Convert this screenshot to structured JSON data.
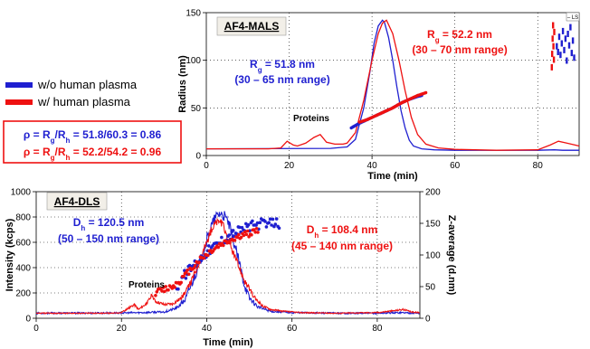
{
  "legend": {
    "items": [
      {
        "label": "w/o human plasma",
        "color": "#1f1fd0"
      },
      {
        "label": "w/ human plasma",
        "color": "#ee1111"
      }
    ]
  },
  "rho_box": {
    "line1": {
      "prefix": "ρ = R",
      "sub1": "g",
      "mid": "/R",
      "sub2": "h",
      "suffix": " = 51.8/60.3 = 0.86"
    },
    "line2": {
      "prefix": "ρ = R",
      "sub1": "g",
      "mid": "/R",
      "sub2": "h",
      "suffix": " = 52.2/54.2 = 0.96"
    }
  },
  "colors": {
    "blue": "#1f1fd0",
    "red": "#ee1111",
    "panel_bg": "#f2efe8"
  },
  "chart_data": [
    {
      "type": "line",
      "title": "AF4-MALS",
      "xlabel": "Time (min)",
      "ylabel": "Radius (nm)",
      "xlim": [
        0,
        90
      ],
      "ylim": [
        0,
        150
      ],
      "xticks": [
        0,
        20,
        40,
        60,
        80
      ],
      "yticks": [
        0,
        50,
        100,
        150
      ],
      "corner_tag": "– LS",
      "annotations": {
        "blue_rg": {
          "prefix": "R",
          "sub": "g",
          "value": " = 51.8 nm",
          "range": "(30 – 65 nm range)"
        },
        "red_rg": {
          "prefix": "R",
          "sub": "g",
          "value": " = 52.2 nm",
          "range": "(30 – 70 nm range)"
        },
        "proteins": "Proteins"
      },
      "series": [
        {
          "color": "blue",
          "kind": "signal",
          "x": [
            0,
            30,
            34,
            36,
            38,
            39.5,
            40.5,
            41.5,
            42.5,
            43,
            44,
            45,
            46,
            47,
            48,
            49,
            50,
            52,
            55,
            60,
            70,
            80,
            84,
            86,
            88,
            90
          ],
          "y": [
            7,
            7.5,
            9,
            17,
            50,
            88,
            118,
            136,
            142,
            140,
            124,
            100,
            72,
            47,
            29,
            16,
            10,
            7,
            6,
            5.5,
            5.5,
            5.5,
            6,
            5.5,
            5.5,
            5.5
          ]
        },
        {
          "color": "red",
          "kind": "signal",
          "x": [
            0,
            15,
            18,
            19.5,
            21,
            22,
            24,
            26,
            27.5,
            29,
            31,
            33,
            34,
            36,
            38,
            40,
            41.5,
            42.5,
            43.5,
            45,
            46.5,
            48,
            49.5,
            51,
            53,
            56,
            60,
            70,
            80,
            83,
            85,
            87,
            89,
            90
          ],
          "y": [
            7,
            7,
            8,
            15,
            11,
            10,
            13,
            19,
            22,
            14,
            12,
            12,
            13,
            24,
            58,
            100,
            128,
            139,
            142,
            128,
            100,
            68,
            40,
            22,
            12,
            8,
            6.5,
            5.5,
            6,
            11,
            15,
            13,
            11,
            10
          ]
        },
        {
          "color": "blue",
          "kind": "radius",
          "x": [
            35,
            37,
            39,
            41,
            43,
            45,
            47,
            49,
            51,
            52
          ],
          "y": [
            29,
            34,
            38,
            42,
            46,
            50,
            55,
            59,
            62,
            63
          ]
        },
        {
          "color": "red",
          "kind": "radius",
          "x": [
            37,
            39,
            41,
            43,
            45,
            47,
            49,
            51,
            53
          ],
          "y": [
            35,
            38,
            42,
            46,
            50,
            55,
            59,
            63,
            66
          ]
        },
        {
          "color": "blue",
          "kind": "radius-scatter",
          "x": [
            84.6,
            84.9,
            85.2,
            85.5,
            85.8,
            86.1,
            86.4,
            86.7,
            87.0,
            87.3,
            87.6,
            87.9,
            88.2,
            88.5,
            88.8
          ],
          "y": [
            118,
            112,
            128,
            109,
            121,
            134,
            114,
            126,
            103,
            131,
            119,
            138,
            111,
            124,
            106
          ]
        },
        {
          "color": "red",
          "kind": "radius-scatter",
          "x": [
            83.4,
            83.5,
            83.6,
            83.7,
            83.8,
            83.9,
            84.0
          ],
          "y": [
            96,
            110,
            126,
            140,
            118,
            104,
            133
          ]
        }
      ]
    },
    {
      "type": "line",
      "title": "AF4-DLS",
      "xlabel": "Time (min)",
      "ylabel": "Intensity (kcps)",
      "y2label": "Z-average (d.nm)",
      "xlim": [
        0,
        90
      ],
      "ylim": [
        0,
        1000
      ],
      "y2lim": [
        0,
        200
      ],
      "xticks": [
        0,
        20,
        40,
        60,
        80
      ],
      "yticks": [
        0,
        200,
        400,
        600,
        800,
        1000
      ],
      "y2ticks": [
        0,
        50,
        100,
        150,
        200
      ],
      "annotations": {
        "blue_dh": {
          "prefix": "D",
          "sub": "h",
          "value": " = 120.5 nm",
          "range": "(50 – 150 nm range)"
        },
        "red_dh": {
          "prefix": "D",
          "sub": "h",
          "value": " = 108.4 nm",
          "range": "(45 – 140 nm range)"
        },
        "proteins": "Proteins"
      },
      "series": [
        {
          "color": "blue",
          "kind": "signal",
          "x": [
            0,
            20,
            25,
            30,
            33,
            35,
            37,
            39,
            40,
            41,
            42,
            43,
            44,
            45,
            46,
            47,
            48,
            49,
            50,
            52,
            55,
            60,
            70,
            80,
            85,
            90
          ],
          "y": [
            40,
            42,
            45,
            50,
            80,
            150,
            320,
            500,
            620,
            720,
            790,
            830,
            810,
            760,
            650,
            520,
            380,
            250,
            160,
            90,
            55,
            45,
            40,
            40,
            45,
            40
          ],
          "jitter": 45
        },
        {
          "color": "red",
          "kind": "signal",
          "x": [
            0,
            18,
            20,
            21.5,
            23,
            24,
            26,
            27,
            28,
            30,
            32,
            34,
            36,
            38,
            40,
            41,
            42,
            43,
            44,
            45,
            47,
            49,
            51,
            53,
            55,
            58,
            62,
            70,
            80,
            84,
            86,
            88,
            90
          ],
          "y": [
            40,
            40,
            45,
            75,
            110,
            70,
            120,
            175,
            135,
            110,
            115,
            160,
            260,
            430,
            600,
            690,
            750,
            770,
            720,
            620,
            450,
            290,
            170,
            100,
            70,
            55,
            45,
            40,
            45,
            60,
            70,
            50,
            45
          ],
          "jitter": 30
        },
        {
          "color": "blue",
          "kind": "zaverage",
          "x": [
            33,
            34,
            35,
            36,
            37,
            38,
            39,
            40,
            41,
            42,
            43,
            44,
            45,
            46,
            47,
            48,
            49,
            50,
            51,
            52,
            53,
            54,
            55,
            56,
            57
          ],
          "y": [
            50,
            62,
            70,
            78,
            85,
            92,
            98,
            105,
            110,
            115,
            120,
            125,
            130,
            133,
            137,
            140,
            142,
            145,
            147,
            148,
            150,
            147,
            150,
            152,
            150
          ],
          "jitter": 8
        },
        {
          "color": "red",
          "kind": "zaverage",
          "x": [
            28,
            30,
            32,
            34,
            36,
            38,
            40,
            41,
            42,
            43,
            44,
            45,
            46,
            47,
            48,
            49,
            50,
            51,
            52
          ],
          "y": [
            40,
            45,
            50,
            60,
            75,
            90,
            100,
            106,
            110,
            115,
            118,
            121,
            124,
            127,
            130,
            132,
            134,
            137,
            139
          ],
          "jitter": 5
        }
      ]
    }
  ]
}
